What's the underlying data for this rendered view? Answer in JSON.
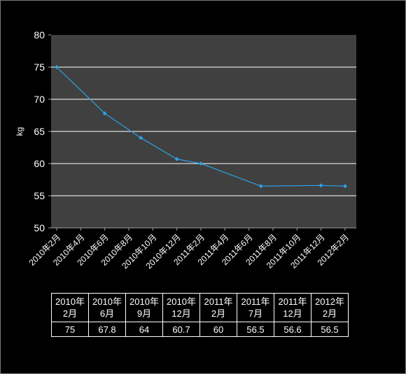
{
  "chart_data": {
    "type": "line",
    "ylabel": "kg",
    "ylim": [
      50,
      80
    ],
    "yticks": [
      50,
      55,
      60,
      65,
      70,
      75,
      80
    ],
    "grid": true,
    "x_tick_labels": [
      "2010年2月",
      "2010年4月",
      "2010年6月",
      "2010年8月",
      "2010年10月",
      "2010年12月",
      "2011年2月",
      "2011年4月",
      "2011年6月",
      "2011年8月",
      "2011年10月",
      "2011年12月",
      "2012年2月"
    ],
    "series": [
      {
        "x": [
          "2010-02",
          "2010-06",
          "2010-09",
          "2010-12",
          "2011-02",
          "2011-07",
          "2011-12",
          "2012-02"
        ],
        "values": [
          75,
          67.8,
          64,
          60.7,
          60,
          56.5,
          56.6,
          56.5
        ]
      }
    ],
    "colors": {
      "background": "#000000",
      "plot_area": "#404040",
      "line": "#2ba3e6",
      "grid": "#ffffff",
      "text": "#ffffff"
    }
  },
  "table": {
    "headers": [
      "2010年\n2月",
      "2010年\n6月",
      "2010年\n9月",
      "2010年\n12月",
      "2011年\n2月",
      "2011年\n7月",
      "2011年\n12月",
      "2012年\n2月"
    ],
    "values": [
      "75",
      "67.8",
      "64",
      "60.7",
      "60",
      "56.5",
      "56.6",
      "56.5"
    ]
  }
}
